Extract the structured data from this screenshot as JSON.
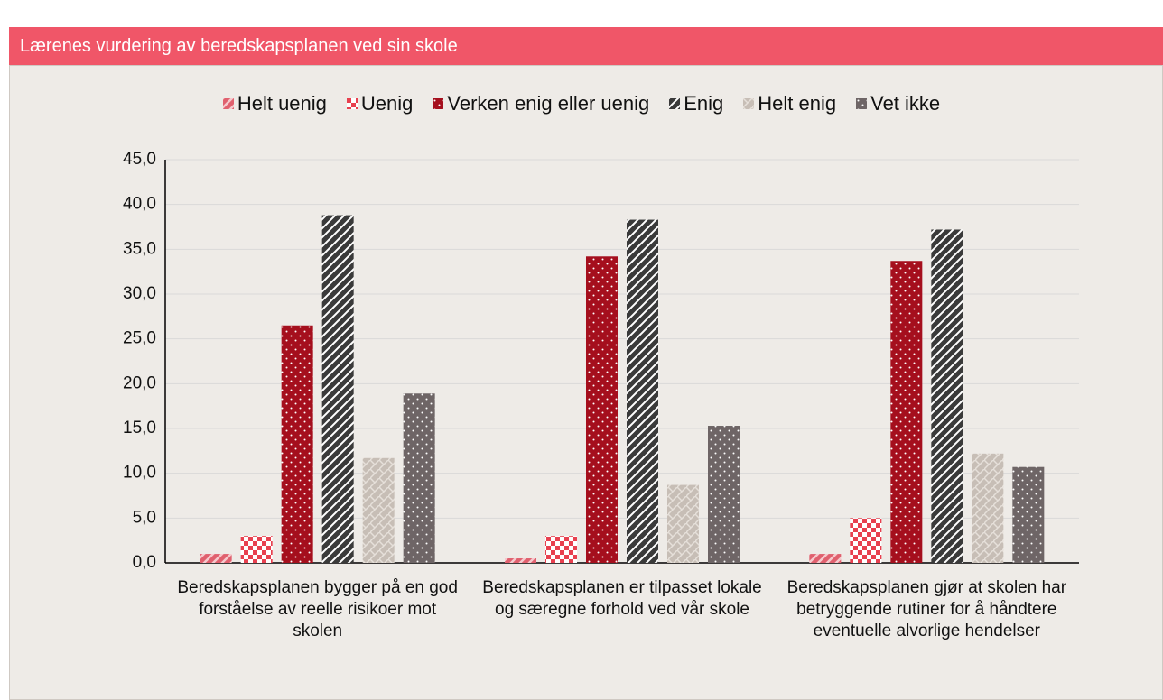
{
  "header": {
    "title": "Lærenes vurdering av beredskapsplanen ved sin skole"
  },
  "chart_data": {
    "type": "bar",
    "categories": [
      "Beredskapsplanen bygger på en god forståelse av reelle risikoer mot skolen",
      "Beredskapsplanen er tilpasset lokale og særegne forhold ved vår skole",
      "Beredskapsplanen gjør at skolen har betryggende rutiner for å håndtere eventuelle alvorlige hendelser"
    ],
    "series": [
      {
        "name": "Helt uenig",
        "color": "#e0606e",
        "values": [
          1.0,
          0.5,
          1.0
        ]
      },
      {
        "name": "Uenig",
        "color": "#e8404f",
        "values": [
          3.0,
          3.0,
          5.0
        ]
      },
      {
        "name": "Verken enig eller uenig",
        "color": "#a50f1d",
        "values": [
          26.5,
          34.2,
          33.7
        ]
      },
      {
        "name": "Enig",
        "color": "#3a3a3a",
        "values": [
          38.8,
          38.3,
          37.2
        ]
      },
      {
        "name": "Helt enig",
        "color": "#c7beb6",
        "values": [
          11.7,
          8.7,
          12.2
        ]
      },
      {
        "name": "Vet ikke",
        "color": "#6e6566",
        "values": [
          18.9,
          15.3,
          10.7
        ]
      }
    ],
    "ylim": [
      0,
      45
    ],
    "yticks": [
      {
        "value": 0,
        "label": "0,0"
      },
      {
        "value": 5,
        "label": "5,0"
      },
      {
        "value": 10,
        "label": "10,0"
      },
      {
        "value": 15,
        "label": "15,0"
      },
      {
        "value": 20,
        "label": "20,0"
      },
      {
        "value": 25,
        "label": "25,0"
      },
      {
        "value": 30,
        "label": "30,0"
      },
      {
        "value": 35,
        "label": "35,0"
      },
      {
        "value": 40,
        "label": "40,0"
      },
      {
        "value": 45,
        "label": "45,0"
      }
    ],
    "grid": true,
    "legend": "top"
  }
}
